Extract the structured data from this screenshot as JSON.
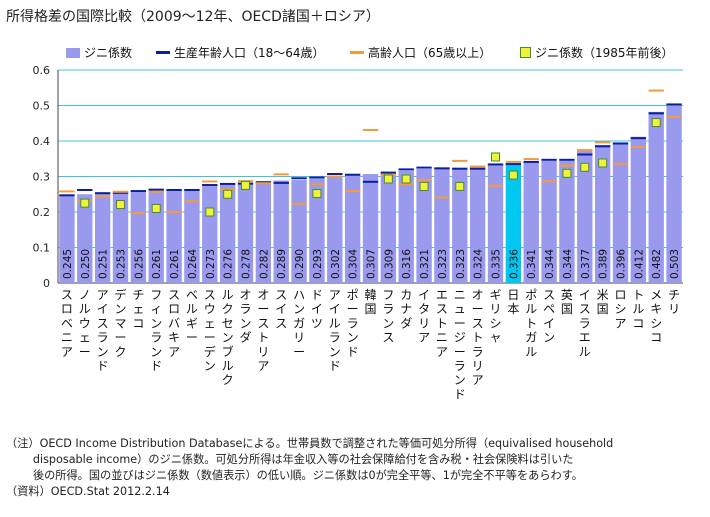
{
  "title": "所得格差の国際比較（2009～12年、OECD諸国＋ロシア）",
  "legend": {
    "bar": "ジニ係数",
    "working": "生産年齢人口（18～64歳）",
    "elderly": "高齢人口（65歳以上）",
    "y1985": "ジニ係数（1985年前後）"
  },
  "notes": {
    "line1": "（注）OECD Income Distribution Databaseによる。世帯員数で調整された等価可処分所得（equivalised household",
    "line2": "disposable income）のジニ係数。可処分所得は年金収入等の社会保障給付を含み税・社会保険料は引いた",
    "line3": "後の所得。国の並びはジニ係数（数値表示）の低い順。ジニ係数は0が完全平等、1が完全不平等をあらわす。",
    "source": "（資料）OECD.Stat 2012.2.14"
  },
  "colors": {
    "bar": "#9999ee",
    "highlight": "#00c8f0",
    "working": "#0a1fa0",
    "elderly": "#f59a3a",
    "marker_fill": "#f2f23a",
    "marker_edge": "#3f8f2f",
    "grid": "#00b0d0"
  },
  "chart_data": {
    "type": "bar",
    "ylim": [
      0,
      0.6
    ],
    "yticks": [
      "0",
      "0.1",
      "0.2",
      "0.3",
      "0.4",
      "0.5",
      "0.6"
    ],
    "highlight": "日本",
    "categories": [
      "スロベニア",
      "ノルウェー",
      "アイスランド",
      "デンマーク",
      "チェコ",
      "フィンランド",
      "スロバキア",
      "ベルギー",
      "スウェーデン",
      "ルクセンブルク",
      "オランダ",
      "オーストリア",
      "スイス",
      "ハンガリー",
      "ドイツ",
      "アイルランド",
      "ポーランド",
      "韓国",
      "フランス",
      "カナダ",
      "イタリア",
      "エストニア",
      "ニュージーランド",
      "オーストラリア",
      "ギリシャ",
      "日本",
      "ポルトガル",
      "スペイン",
      "英国",
      "イスラエル",
      "米国",
      "ロシア",
      "トルコ",
      "メキシコ",
      "チリ"
    ],
    "series": [
      {
        "name": "ジニ係数",
        "values": [
          0.245,
          0.25,
          0.251,
          0.253,
          0.256,
          0.261,
          0.261,
          0.264,
          0.273,
          0.276,
          0.278,
          0.282,
          0.289,
          0.29,
          0.293,
          0.302,
          0.304,
          0.307,
          0.309,
          0.316,
          0.321,
          0.323,
          0.323,
          0.324,
          0.335,
          0.336,
          0.341,
          0.344,
          0.344,
          0.377,
          0.389,
          0.396,
          0.412,
          0.482,
          0.503
        ]
      },
      {
        "name": "生産年齢人口（18～64歳）",
        "values": [
          0.247,
          0.262,
          0.253,
          0.254,
          0.259,
          0.263,
          0.262,
          0.262,
          0.276,
          0.279,
          0.28,
          0.284,
          0.282,
          0.295,
          0.297,
          0.307,
          0.305,
          0.285,
          0.311,
          0.32,
          0.325,
          0.323,
          0.322,
          0.322,
          0.334,
          0.335,
          0.341,
          0.347,
          0.347,
          0.362,
          0.385,
          0.393,
          0.408,
          0.478,
          0.503
        ]
      },
      {
        "name": "高齢人口（65歳以上）",
        "values": [
          0.258,
          0.231,
          0.244,
          0.257,
          0.197,
          0.257,
          0.2,
          0.23,
          0.286,
          0.264,
          0.287,
          0.281,
          0.306,
          0.223,
          0.278,
          0.3,
          0.259,
          0.431,
          0.305,
          0.278,
          0.29,
          0.241,
          0.344,
          0.328,
          0.274,
          0.341,
          0.349,
          0.287,
          0.331,
          0.374,
          0.396,
          0.335,
          0.383,
          0.542,
          0.468
        ]
      },
      {
        "name": "ジニ係数（1985年前後）",
        "values": [
          null,
          0.225,
          null,
          0.221,
          null,
          0.21,
          null,
          null,
          0.2,
          0.25,
          0.275,
          null,
          null,
          null,
          0.252,
          null,
          null,
          null,
          0.293,
          0.293,
          0.272,
          null,
          0.272,
          null,
          0.355,
          0.304,
          null,
          null,
          0.309,
          0.326,
          0.338,
          null,
          null,
          0.452,
          null
        ]
      }
    ]
  }
}
